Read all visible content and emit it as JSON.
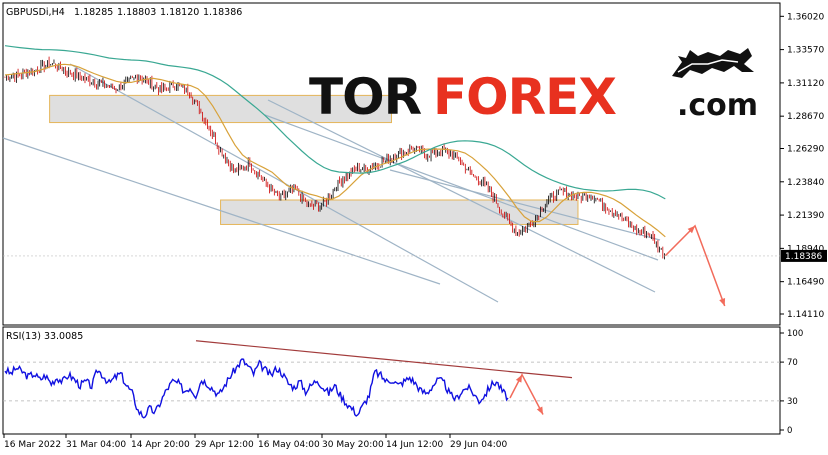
{
  "header": {
    "symbol": "GBPUSDi,H4",
    "open": "1.18285",
    "high": "1.18803",
    "low": "1.18120",
    "close": "1.18386"
  },
  "watermark": {
    "part1": "TOR",
    "part2": "FOREX",
    "part3": ".com",
    "icon": "bull-bear-icon"
  },
  "rsi_label": "RSI(13) 33.0085",
  "current_price_tag": "1.18386",
  "colors": {
    "bull_candle": "#000000",
    "bear_candle": "#cc0000",
    "ma_fast": "#d8a23a",
    "ma_slow": "#3aa893",
    "channel": "#9fb4c6",
    "zone_fill": "#d9d9d9",
    "zone_border": "#e4b65a",
    "arrow": "#f26b5b",
    "rsi_line": "#1010e0",
    "rsi_trend": "#a23b3b",
    "price_tag_bg": "#000000"
  },
  "chart_data": [
    {
      "type": "candlestick",
      "symbol": "GBPUSDi",
      "timeframe": "H4",
      "price_ticks": [
        "1.36020",
        "1.33570",
        "1.31120",
        "1.28670",
        "1.26290",
        "1.23840",
        "1.21390",
        "1.18940",
        "1.16490",
        "1.14110"
      ],
      "price_tick_values": [
        1.3602,
        1.3357,
        1.3112,
        1.2867,
        1.2629,
        1.2384,
        1.2139,
        1.1894,
        1.1649,
        1.1411
      ],
      "x_ticks": [
        "16 Mar 2022",
        "31 Mar 04:00",
        "14 Apr 20:00",
        "29 Apr 12:00",
        "16 May 04:00",
        "30 May 20:00",
        "14 Jun 12:00",
        "29 Jun 04:00"
      ],
      "price_path_approx": [
        [
          0,
          1.315
        ],
        [
          4,
          1.32
        ],
        [
          6,
          1.326
        ],
        [
          9,
          1.318
        ],
        [
          12,
          1.312
        ],
        [
          15,
          1.307
        ],
        [
          18,
          1.316
        ],
        [
          21,
          1.306
        ],
        [
          23,
          1.31
        ],
        [
          25,
          1.304
        ],
        [
          27,
          1.283
        ],
        [
          29,
          1.262
        ],
        [
          31,
          1.246
        ],
        [
          33,
          1.252
        ],
        [
          35,
          1.238
        ],
        [
          37,
          1.226
        ],
        [
          39,
          1.233
        ],
        [
          41,
          1.22
        ],
        [
          43,
          1.222
        ],
        [
          45,
          1.238
        ],
        [
          47,
          1.247
        ],
        [
          49,
          1.249
        ],
        [
          51,
          1.253
        ],
        [
          53,
          1.259
        ],
        [
          55,
          1.263
        ],
        [
          57,
          1.258
        ],
        [
          59,
          1.262
        ],
        [
          61,
          1.256
        ],
        [
          63,
          1.243
        ],
        [
          65,
          1.235
        ],
        [
          67,
          1.216
        ],
        [
          69,
          1.201
        ],
        [
          71,
          1.208
        ],
        [
          73,
          1.224
        ],
        [
          75,
          1.231
        ],
        [
          77,
          1.227
        ],
        [
          79,
          1.229
        ],
        [
          81,
          1.22
        ],
        [
          83,
          1.213
        ],
        [
          85,
          1.203
        ],
        [
          87,
          1.199
        ],
        [
          89,
          1.184
        ]
      ],
      "moving_averages": [
        "fast",
        "slow"
      ],
      "resistance_zones": [
        {
          "from_pct": 0.06,
          "to_pct": 0.5,
          "low": 1.282,
          "high": 1.302
        },
        {
          "from_pct": 0.28,
          "to_pct": 0.74,
          "low": 1.207,
          "high": 1.225
        }
      ],
      "forecast_arrow": [
        [
          89,
          1.184
        ],
        [
          93,
          1.206
        ],
        [
          97,
          1.147
        ]
      ],
      "current_price": 1.18386
    },
    {
      "type": "line",
      "name": "RSI(13)",
      "last_value": 33.0085,
      "ylim": [
        0,
        100
      ],
      "y_ticks": [
        "100",
        "70",
        "30",
        "0"
      ],
      "levels": [
        70,
        30
      ],
      "values_approx": [
        62,
        58,
        64,
        60,
        55,
        58,
        52,
        56,
        48,
        54,
        50,
        57,
        52,
        46,
        50,
        45,
        62,
        56,
        48,
        54,
        58,
        46,
        38,
        20,
        14,
        22,
        18,
        30,
        42,
        50,
        48,
        40,
        44,
        36,
        52,
        48,
        42,
        36,
        46,
        56,
        64,
        72,
        66,
        58,
        68,
        62,
        56,
        64,
        58,
        48,
        44,
        50,
        40,
        46,
        52,
        44,
        38,
        46,
        36,
        28,
        22,
        16,
        26,
        36,
        60,
        56,
        50,
        52,
        46,
        50,
        54,
        48,
        40,
        38,
        46,
        52,
        48,
        36,
        32,
        40,
        44,
        38,
        30,
        36,
        46,
        50,
        40,
        33
      ],
      "forecast_arrow": [
        [
          88,
          33
        ],
        [
          91,
          55
        ],
        [
          95,
          18
        ]
      ],
      "trendline": [
        [
          0,
          92
        ],
        [
          100,
          54
        ]
      ]
    }
  ]
}
